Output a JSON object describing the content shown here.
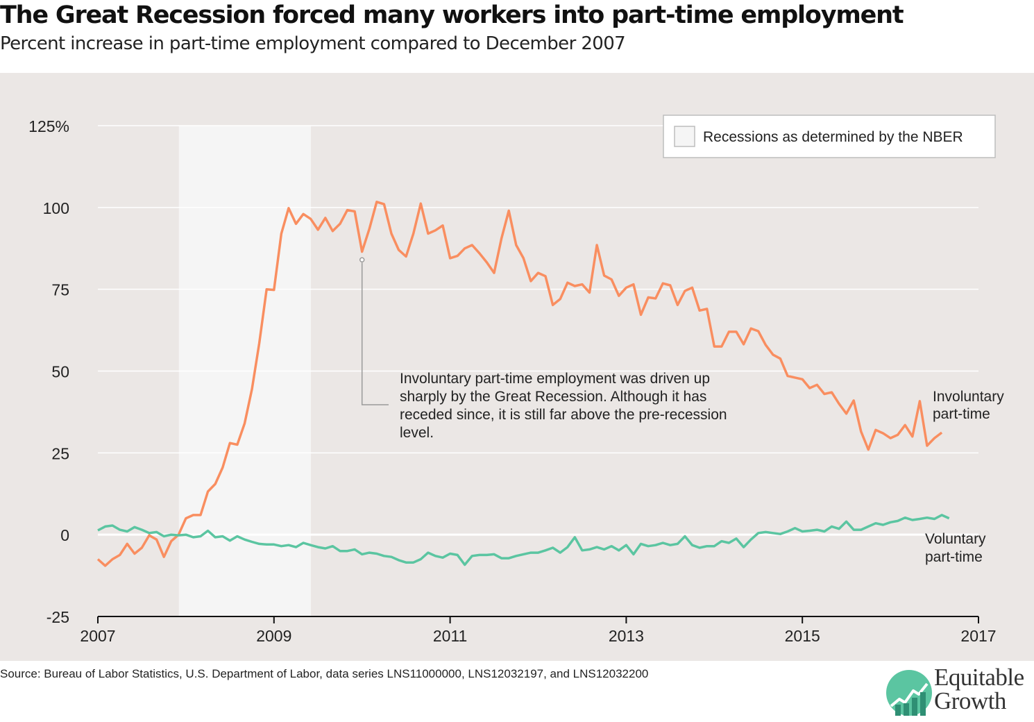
{
  "title": "The Great Recession forced many workers into part-time employment",
  "subtitle": "Percent increase in part-time employment compared to December 2007",
  "source": "Source: Bureau of Labor Statistics, U.S. Department of Labor, data series LNS11000000, LNS12032197, and LNS12032200",
  "logo": {
    "line1": "Equitable",
    "line2": "Growth",
    "icon": "rising-chart-circle-icon"
  },
  "legend": {
    "label": "Recessions as determined by the NBER"
  },
  "annotation": {
    "lines": [
      "Involuntary part-time employment was driven up",
      "sharply by the Great Recession. Although it has",
      "receded since, it is still far above the pre-recession",
      "level."
    ]
  },
  "series_labels": {
    "involuntary": [
      "Involuntary",
      "part-time"
    ],
    "voluntary": [
      "Voluntary",
      "part-time"
    ]
  },
  "colors": {
    "plot_bg": "#ebe7e5",
    "recession_band": "#f5f5f5",
    "involuntary": "#f98e60",
    "voluntary": "#5bc5a1",
    "grid": "#ffffff",
    "zero_line": "#ffffff",
    "axis": "#111111"
  },
  "chart_data": {
    "type": "line",
    "xlim": [
      2007,
      2017
    ],
    "ylim": [
      -25,
      125
    ],
    "x_ticks": [
      2007,
      2009,
      2011,
      2013,
      2015,
      2017
    ],
    "y_ticks": [
      -25,
      0,
      25,
      50,
      75,
      100,
      125
    ],
    "y_tick_labels": [
      "-25",
      "0",
      "25",
      "50",
      "75",
      "100",
      "125%"
    ],
    "grid": true,
    "legend_position": "top-right",
    "recessions": [
      {
        "start": 2007.92,
        "end": 2009.42
      }
    ],
    "annotation_point": {
      "x": 2010.0,
      "y": 84
    },
    "x_start": 2007.0,
    "x_step": 0.08333,
    "series": [
      {
        "name": "Involuntary part-time",
        "key": "involuntary",
        "values": [
          -7.5,
          -9.5,
          -7.5,
          -6.2,
          -2.8,
          -5.8,
          -4.0,
          -0.2,
          -1.5,
          -6.8,
          -2.0,
          0.0,
          5.0,
          6.0,
          6.0,
          13.2,
          15.5,
          20.5,
          28.0,
          27.5,
          34.0,
          44.5,
          58.5,
          75.0,
          74.8,
          92.0,
          99.8,
          95.0,
          98.0,
          96.5,
          93.2,
          96.8,
          92.8,
          95.0,
          99.2,
          98.8,
          86.5,
          93.5,
          101.7,
          101.0,
          92.0,
          87.0,
          85.0,
          92.0,
          101.2,
          92.0,
          93.0,
          94.5,
          84.5,
          85.2,
          87.5,
          88.5,
          86.0,
          83.2,
          80.0,
          90.5,
          99.0,
          88.5,
          84.5,
          77.5,
          80.0,
          79.0,
          70.2,
          72.0,
          77.0,
          76.0,
          76.5,
          74.0,
          88.5,
          79.2,
          78.0,
          73.0,
          75.5,
          76.5,
          67.2,
          72.5,
          72.2,
          76.8,
          76.2,
          70.2,
          74.5,
          75.5,
          68.5,
          69.0,
          57.5,
          57.5,
          62.0,
          62.0,
          58.2,
          63.0,
          62.2,
          58.0,
          55.0,
          53.8,
          48.5,
          48.0,
          47.5,
          44.8,
          45.8,
          43.0,
          43.5,
          40.0,
          37.0,
          41.0,
          31.5,
          26.0,
          32.0,
          31.0,
          29.5,
          30.5,
          33.5,
          30.0,
          40.8,
          27.2,
          29.5,
          31.2
        ]
      },
      {
        "name": "Voluntary part-time",
        "key": "voluntary",
        "values": [
          1.3,
          2.5,
          2.8,
          1.5,
          1.0,
          2.3,
          1.5,
          0.5,
          0.8,
          -0.5,
          0.0,
          -0.2,
          0.0,
          -0.8,
          -0.5,
          1.2,
          -0.8,
          -0.5,
          -1.8,
          -0.5,
          -1.5,
          -2.2,
          -2.8,
          -3.0,
          -3.0,
          -3.5,
          -3.2,
          -3.8,
          -2.5,
          -3.2,
          -3.8,
          -4.2,
          -3.5,
          -5.0,
          -5.0,
          -4.5,
          -6.0,
          -5.5,
          -5.8,
          -6.5,
          -6.8,
          -7.8,
          -8.5,
          -8.5,
          -7.5,
          -5.5,
          -6.5,
          -7.0,
          -5.8,
          -6.2,
          -9.2,
          -6.5,
          -6.2,
          -6.2,
          -6.0,
          -7.2,
          -7.2,
          -6.5,
          -6.0,
          -5.5,
          -5.5,
          -4.8,
          -4.0,
          -5.5,
          -3.8,
          -0.8,
          -4.8,
          -4.5,
          -3.8,
          -4.5,
          -3.5,
          -4.8,
          -3.2,
          -6.0,
          -2.8,
          -3.5,
          -3.2,
          -2.5,
          -3.2,
          -2.8,
          -0.5,
          -3.2,
          -4.0,
          -3.5,
          -3.5,
          -2.0,
          -2.5,
          -1.2,
          -3.8,
          -1.5,
          0.5,
          0.8,
          0.5,
          0.2,
          1.0,
          2.0,
          1.0,
          1.2,
          1.5,
          1.0,
          2.5,
          1.8,
          4.0,
          1.5,
          1.5,
          2.5,
          3.5,
          3.0,
          3.8,
          4.2,
          5.2,
          4.5,
          4.8,
          5.2,
          4.8,
          6.0,
          5.0
        ]
      }
    ]
  }
}
